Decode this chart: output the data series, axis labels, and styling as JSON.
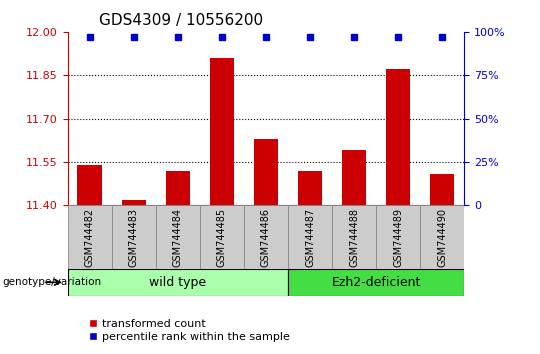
{
  "title": "GDS4309 / 10556200",
  "samples": [
    "GSM744482",
    "GSM744483",
    "GSM744484",
    "GSM744485",
    "GSM744486",
    "GSM744487",
    "GSM744488",
    "GSM744489",
    "GSM744490"
  ],
  "transformed_counts": [
    11.54,
    11.42,
    11.52,
    11.91,
    11.63,
    11.52,
    11.59,
    11.87,
    11.51
  ],
  "ylim_left": [
    11.4,
    12.0
  ],
  "yticks_left": [
    11.4,
    11.55,
    11.7,
    11.85,
    12.0
  ],
  "yticks_right": [
    0,
    25,
    50,
    75,
    100
  ],
  "ylim_right": [
    0,
    100
  ],
  "bar_color": "#cc0000",
  "dot_color": "#0000cc",
  "groups": [
    {
      "label": "wild type",
      "start": 0,
      "end": 4,
      "color": "#aaffaa"
    },
    {
      "label": "Ezh2-deficient",
      "start": 5,
      "end": 8,
      "color": "#44dd44"
    }
  ],
  "genotype_label": "genotype/variation",
  "legend_bar_label": "transformed count",
  "legend_dot_label": "percentile rank within the sample",
  "grid_color": "#000000",
  "axis_color_left": "#cc0000",
  "axis_color_right": "#0000cc",
  "xtick_bg": "#cccccc",
  "xtick_border": "#888888"
}
